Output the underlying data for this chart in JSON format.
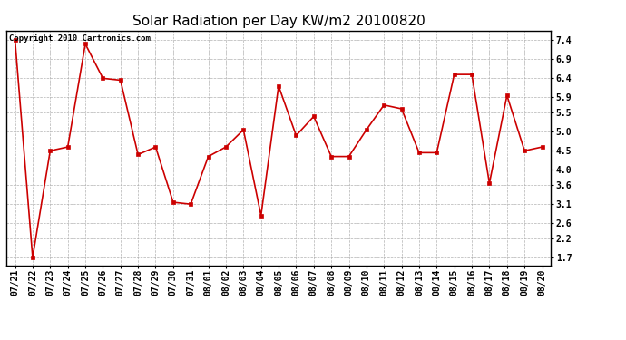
{
  "title": "Solar Radiation per Day KW/m2 20100820",
  "copyright_text": "Copyright 2010 Cartronics.com",
  "labels": [
    "07/21",
    "07/22",
    "07/23",
    "07/24",
    "07/25",
    "07/26",
    "07/27",
    "07/28",
    "07/29",
    "07/30",
    "07/31",
    "08/01",
    "08/02",
    "08/03",
    "08/04",
    "08/05",
    "08/06",
    "08/07",
    "08/08",
    "08/09",
    "08/10",
    "08/11",
    "08/12",
    "08/13",
    "08/14",
    "08/15",
    "08/16",
    "08/17",
    "08/18",
    "08/19",
    "08/20"
  ],
  "values": [
    7.4,
    1.7,
    4.5,
    4.6,
    7.3,
    6.4,
    6.35,
    4.4,
    4.6,
    3.15,
    3.1,
    4.35,
    4.6,
    5.05,
    2.8,
    6.2,
    4.9,
    5.4,
    4.35,
    4.35,
    5.05,
    5.7,
    5.6,
    4.45,
    4.45,
    6.5,
    6.5,
    3.65,
    5.95,
    4.5,
    4.6
  ],
  "line_color": "#cc0000",
  "marker": "s",
  "marker_size": 2.5,
  "marker_edge_width": 0.5,
  "line_width": 1.2,
  "ylim": [
    1.5,
    7.65
  ],
  "yticks": [
    1.7,
    2.2,
    2.6,
    3.1,
    3.6,
    4.0,
    4.5,
    5.0,
    5.5,
    5.9,
    6.4,
    6.9,
    7.4
  ],
  "bg_color": "#ffffff",
  "grid_color": "#aaaaaa",
  "title_fontsize": 11,
  "tick_fontsize": 7,
  "copyright_fontsize": 6.5
}
